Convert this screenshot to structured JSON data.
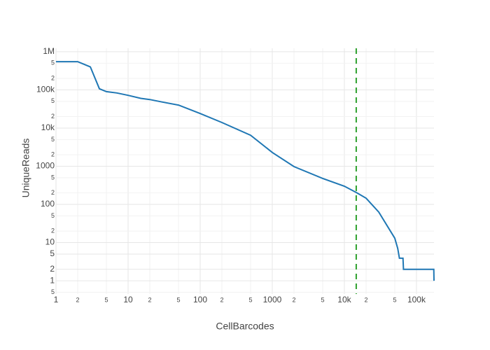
{
  "chart_data": {
    "type": "line",
    "x_label": "CellBarcodes",
    "y_label": "UniqueReads",
    "log_x": true,
    "log_y": true,
    "grid": true,
    "x": [
      1,
      2,
      3,
      4,
      5,
      7,
      10,
      15,
      20,
      30,
      50,
      100,
      200,
      500,
      1000,
      2000,
      5000,
      10000,
      15000,
      20000,
      30000,
      50000,
      55000,
      58000,
      65000,
      66000,
      174000,
      175000
    ],
    "series": [
      {
        "color": "#1f77b4",
        "values": [
          550000,
          550000,
          400000,
          107000,
          90000,
          83000,
          72000,
          60000,
          56000,
          48000,
          40000,
          24000,
          14000,
          6500,
          2300,
          980,
          480,
          300,
          200,
          145,
          63,
          13,
          7,
          3.9,
          3.9,
          2,
          2,
          1
        ]
      }
    ],
    "vline": {
      "x": 14600,
      "color": "#2ca02c",
      "dash": true
    },
    "xlim": [
      1,
      175000
    ],
    "ylim": [
      0.45,
      1230000
    ],
    "xticks": [
      1,
      {
        "value": 2,
        "label": "2"
      },
      {
        "value": 5,
        "label": "5"
      },
      10,
      {
        "value": 20,
        "label": "2"
      },
      {
        "value": 50,
        "label": "5"
      },
      100,
      {
        "value": 200,
        "label": "2"
      },
      {
        "value": 500,
        "label": "5"
      },
      1000,
      {
        "value": 2000,
        "label": "2"
      },
      {
        "value": 5000,
        "label": "5"
      },
      {
        "value": 10000,
        "label": "10k"
      },
      {
        "value": 20000,
        "label": "2"
      },
      {
        "value": 50000,
        "label": "5"
      },
      {
        "value": 100000,
        "label": "100k"
      }
    ],
    "yticks": [
      {
        "value": 0.5,
        "label": "5"
      },
      1,
      2,
      5,
      10,
      {
        "value": 20,
        "label": "2"
      },
      {
        "value": 50,
        "label": "5"
      },
      100,
      {
        "value": 200,
        "label": "2"
      },
      {
        "value": 500,
        "label": "5"
      },
      1000,
      {
        "value": 2000,
        "label": "2"
      },
      {
        "value": 5000,
        "label": "5"
      },
      {
        "value": 10000,
        "label": "10k"
      },
      {
        "value": 20000,
        "label": "2"
      },
      {
        "value": 50000,
        "label": "5"
      },
      {
        "value": 100000,
        "label": "100k"
      },
      {
        "value": 200000,
        "label": "2"
      },
      {
        "value": 500000,
        "label": "5"
      },
      {
        "value": 1000000,
        "label": "1M"
      }
    ]
  }
}
